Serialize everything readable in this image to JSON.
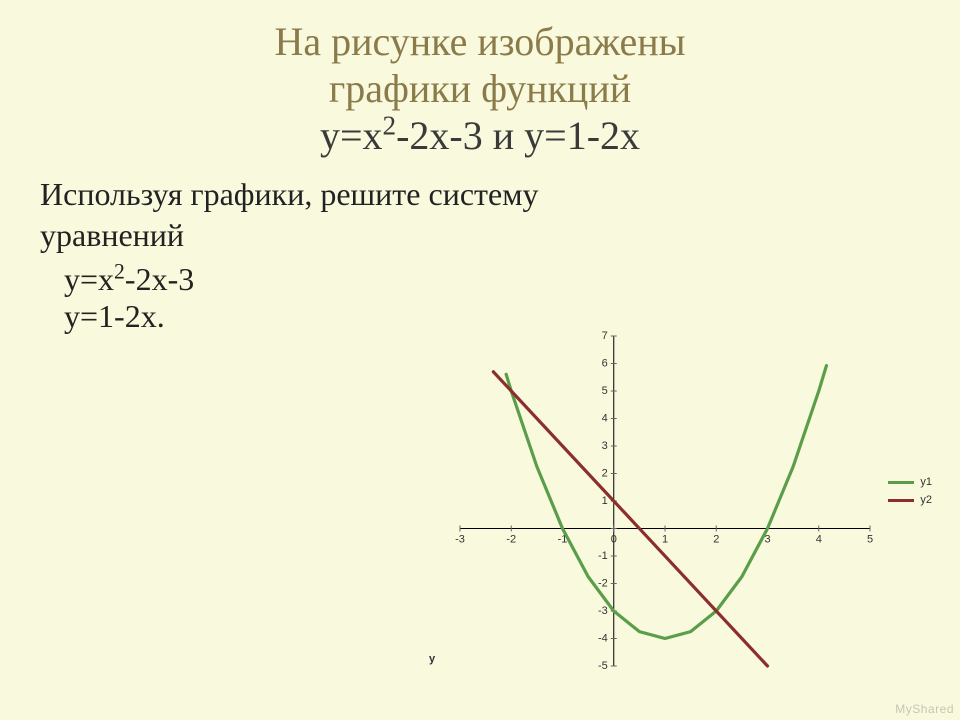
{
  "title": {
    "line1": "На рисунке изображены",
    "line2": "графики функций",
    "line3_prefix": "у=х",
    "line3_sup": "2",
    "line3_suffix": "-2х-3 и у=1-2х",
    "title_color": "#8b7b4a",
    "title_formula_color": "#3a3a3a",
    "title_fontsize": 40
  },
  "prompt": {
    "line1": "Используя графики, решите систему",
    "line2": "уравнений",
    "fontsize": 32,
    "color": "#222"
  },
  "equations": {
    "eq1_prefix": "у=x",
    "eq1_sup": "2",
    "eq1_suffix": "-2x-3",
    "eq2": "у=1-2x.",
    "brace_color": "#222"
  },
  "chart": {
    "type": "line",
    "background_color": "#f9f9dd",
    "axis_color": "#000000",
    "tick_color": "#666666",
    "tick_fontsize": 11,
    "xlim": [
      -3,
      5
    ],
    "ylim": [
      -5,
      7
    ],
    "xticks": [
      -3,
      -2,
      -1,
      0,
      1,
      2,
      3,
      4,
      5
    ],
    "yticks": [
      -5,
      -4,
      -3,
      -2,
      -1,
      0,
      1,
      2,
      3,
      4,
      5,
      6,
      7
    ],
    "y_axis_title": "y",
    "y_axis_title_fontsize": 11,
    "series": [
      {
        "name": "y1",
        "color": "#5a9e4a",
        "width": 3.2,
        "points": [
          [
            -2.1,
            5.61
          ],
          [
            -2,
            5
          ],
          [
            -1.5,
            2.25
          ],
          [
            -1,
            0
          ],
          [
            -0.5,
            -1.75
          ],
          [
            0,
            -3
          ],
          [
            0.5,
            -3.75
          ],
          [
            1,
            -4
          ],
          [
            1.5,
            -3.75
          ],
          [
            2,
            -3
          ],
          [
            2.5,
            -1.75
          ],
          [
            3,
            0
          ],
          [
            3.5,
            2.25
          ],
          [
            4,
            5
          ],
          [
            4.15,
            5.9225
          ]
        ]
      },
      {
        "name": "y2",
        "color": "#8b2e2e",
        "width": 3.2,
        "points": [
          [
            -2.35,
            5.7
          ],
          [
            3,
            -5
          ]
        ]
      }
    ],
    "legend": {
      "items": [
        {
          "label": "y1",
          "color": "#5a9e4a"
        },
        {
          "label": "y2",
          "color": "#8b2e2e"
        }
      ],
      "position": "right",
      "fontsize": 11
    }
  },
  "watermark": "MyShared"
}
